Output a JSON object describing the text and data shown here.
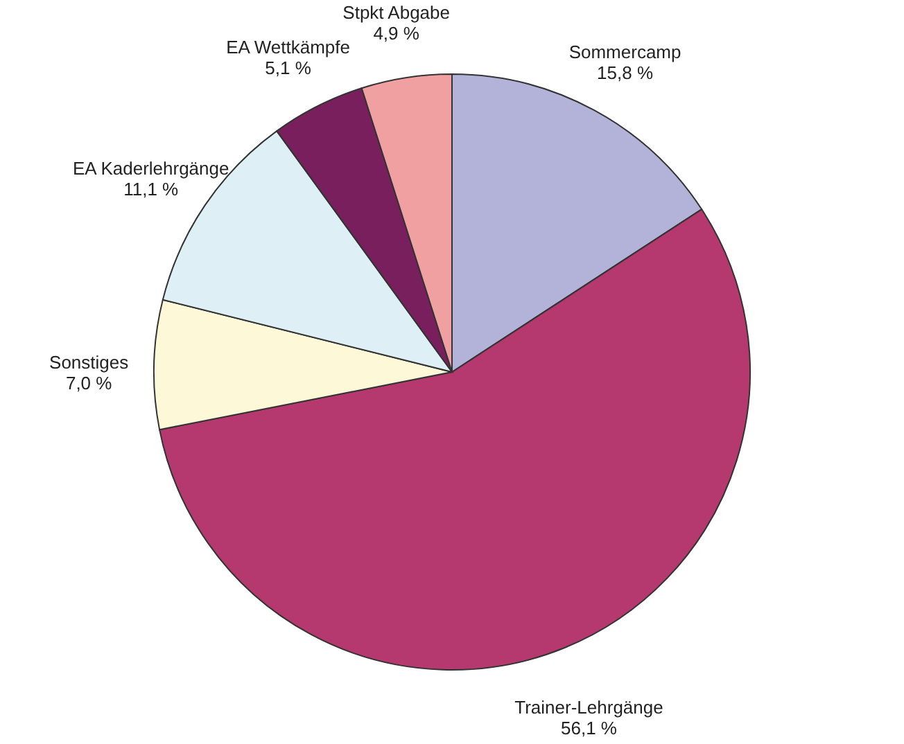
{
  "chart_data": {
    "type": "pie",
    "categories": [
      "Sommercamp",
      "Trainer-Lehrgänge",
      "Sonstiges",
      "EA Kaderlehrgänge",
      "EA Wettkämpfe",
      "Stpkt Abgabe"
    ],
    "values": [
      15.8,
      56.1,
      7.0,
      11.1,
      5.1,
      4.9
    ],
    "colors": [
      "#b3b3d9",
      "#b5396e",
      "#fdf8d8",
      "#def0f6",
      "#7a1f5e",
      "#f0a0a0"
    ],
    "value_labels": [
      "15,8 %",
      "56,1 %",
      "7,0 %",
      "11,1 %",
      "5,1 %",
      "4,9 %"
    ]
  }
}
